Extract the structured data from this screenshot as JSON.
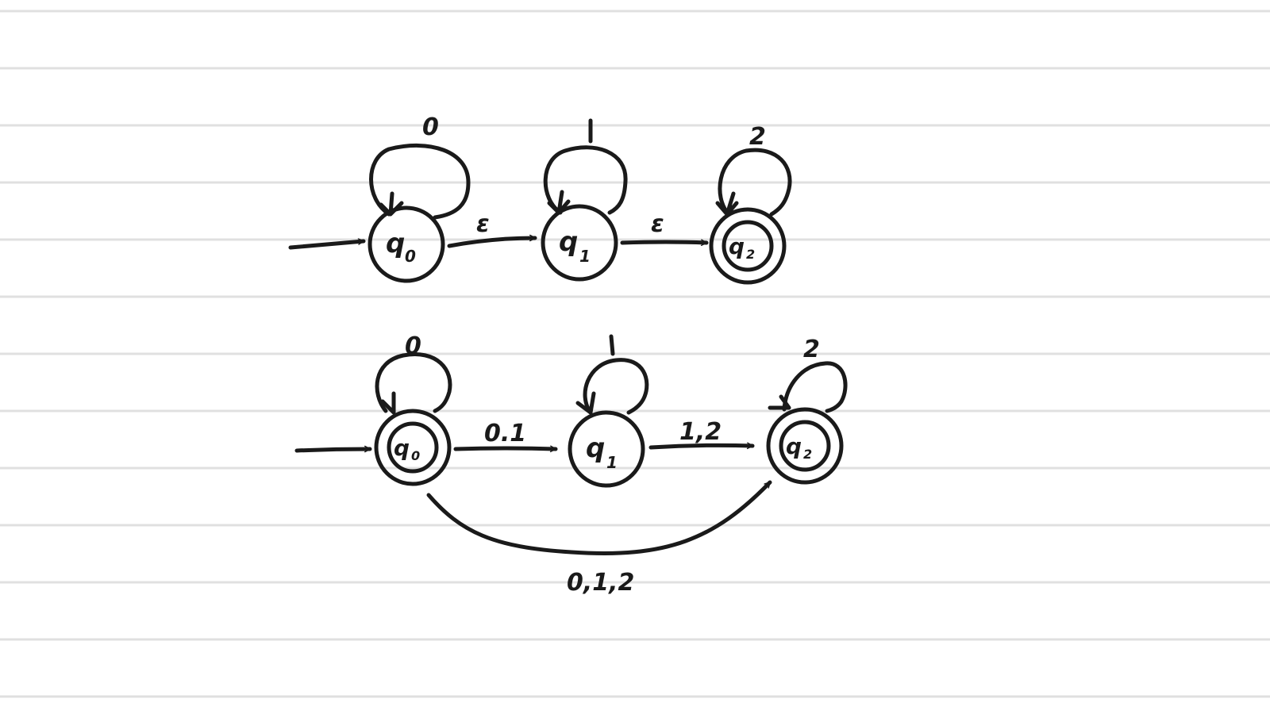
{
  "automaton_top": {
    "states": [
      {
        "name": "q",
        "sub": "0",
        "accepting": false,
        "loop": "0"
      },
      {
        "name": "q",
        "sub": "1",
        "accepting": false,
        "loop": "1"
      },
      {
        "name": "q",
        "sub": "2",
        "accepting": true,
        "loop": "2"
      }
    ],
    "transitions": [
      {
        "from": "q0",
        "to": "q1",
        "label": "ε"
      },
      {
        "from": "q1",
        "to": "q2",
        "label": "ε"
      }
    ]
  },
  "automaton_bottom": {
    "states": [
      {
        "name": "q",
        "sub": "0",
        "accepting": true,
        "loop": "0"
      },
      {
        "name": "q",
        "sub": "1",
        "accepting": false,
        "loop": "1"
      },
      {
        "name": "q",
        "sub": "2",
        "accepting": true,
        "loop": "2"
      }
    ],
    "transitions": [
      {
        "from": "q0",
        "to": "q1",
        "label": "0.1"
      },
      {
        "from": "q1",
        "to": "q2",
        "label": "1,2"
      },
      {
        "from": "q0",
        "to": "q2",
        "label": "0,1,2"
      }
    ]
  },
  "colors": {
    "ink": "#1a1a1a",
    "ruled_line": "#e0e0e0",
    "paper": "#ffffff"
  }
}
